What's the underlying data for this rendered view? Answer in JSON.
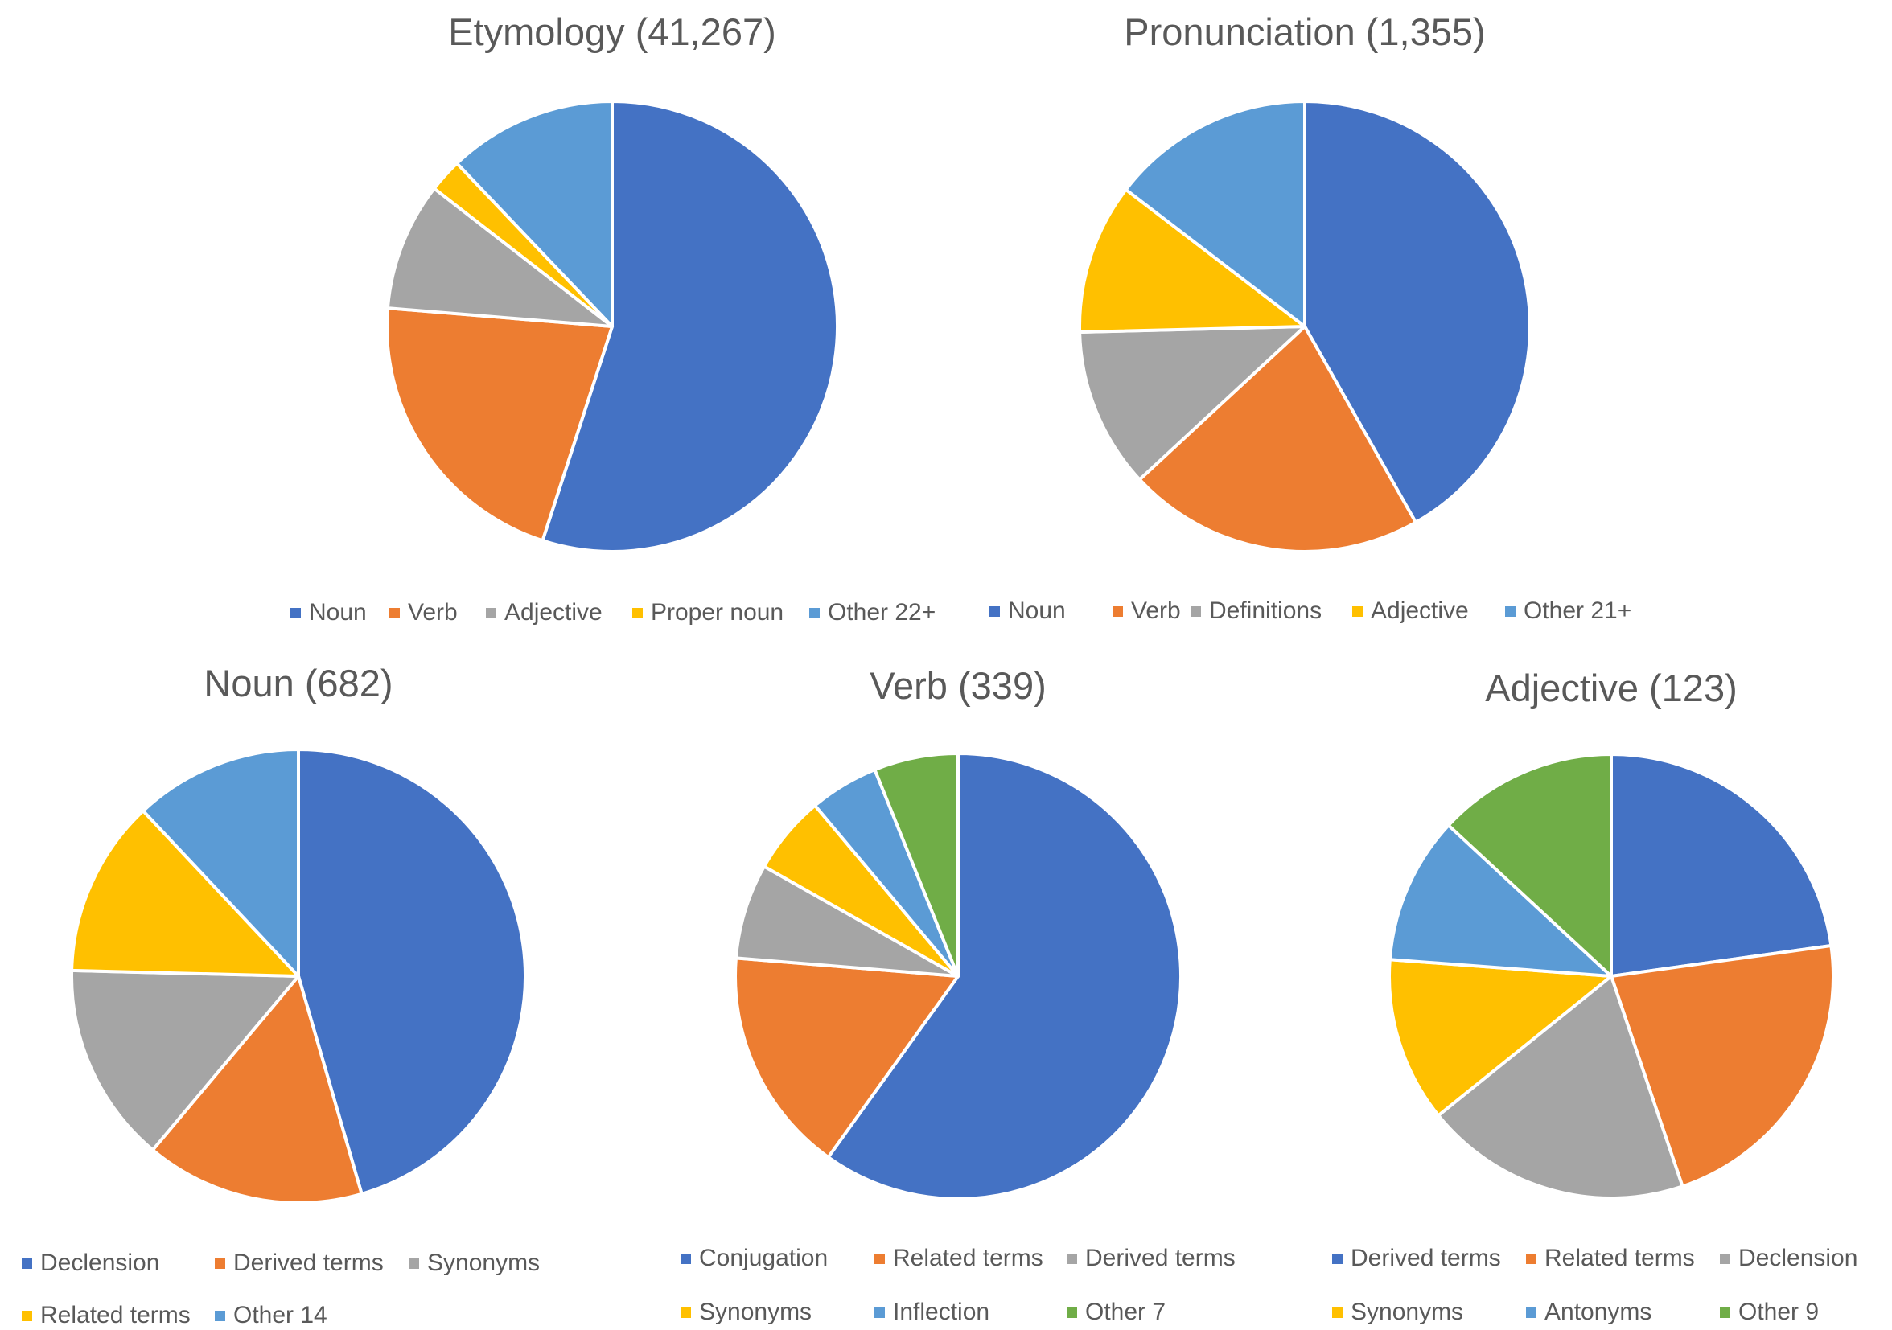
{
  "chart_data": [
    {
      "type": "pie",
      "title": "Etymology (41,267)",
      "categories": [
        "Noun",
        "Verb",
        "Adjective",
        "Proper noun",
        "Other 22+"
      ],
      "values": [
        55.0,
        21.3,
        9.2,
        2.4,
        12.1
      ],
      "colors": [
        "#4472C4",
        "#ED7D31",
        "#A5A5A5",
        "#FFC000",
        "#5B9BD5"
      ],
      "legend": "bottom"
    },
    {
      "type": "pie",
      "title": "Pronunciation (1,355)",
      "categories": [
        "Noun",
        "Verb",
        "Definitions",
        "Adjective",
        "Other 21+"
      ],
      "values": [
        41.8,
        21.3,
        11.5,
        10.8,
        14.6
      ],
      "colors": [
        "#4472C4",
        "#ED7D31",
        "#A5A5A5",
        "#FFC000",
        "#5B9BD5"
      ],
      "legend": "bottom"
    },
    {
      "type": "pie",
      "title": "Noun (682)",
      "categories": [
        "Declension",
        "Derived terms",
        "Synonyms",
        "Related terms",
        "Other 14"
      ],
      "values": [
        45.5,
        15.6,
        14.3,
        12.6,
        12.0
      ],
      "colors": [
        "#4472C4",
        "#ED7D31",
        "#A5A5A5",
        "#FFC000",
        "#5B9BD5"
      ],
      "legend": "bottom"
    },
    {
      "type": "pie",
      "title": "Verb (339)",
      "categories": [
        "Conjugation",
        "Related terms",
        "Derived terms",
        "Synonyms",
        "Inflection",
        "Other 7"
      ],
      "values": [
        59.9,
        16.4,
        6.9,
        5.7,
        5.0,
        6.1
      ],
      "colors": [
        "#4472C4",
        "#ED7D31",
        "#A5A5A5",
        "#FFC000",
        "#5B9BD5",
        "#70AD47"
      ],
      "legend": "bottom"
    },
    {
      "type": "pie",
      "title": "Adjective (123)",
      "categories": [
        "Derived terms",
        "Related terms",
        "Declension",
        "Synonyms",
        "Antonyms",
        "Other 9"
      ],
      "values": [
        22.8,
        22.0,
        19.4,
        12.0,
        10.7,
        13.1
      ],
      "colors": [
        "#4472C4",
        "#ED7D31",
        "#A5A5A5",
        "#FFC000",
        "#5B9BD5",
        "#70AD47"
      ],
      "legend": "bottom"
    }
  ]
}
